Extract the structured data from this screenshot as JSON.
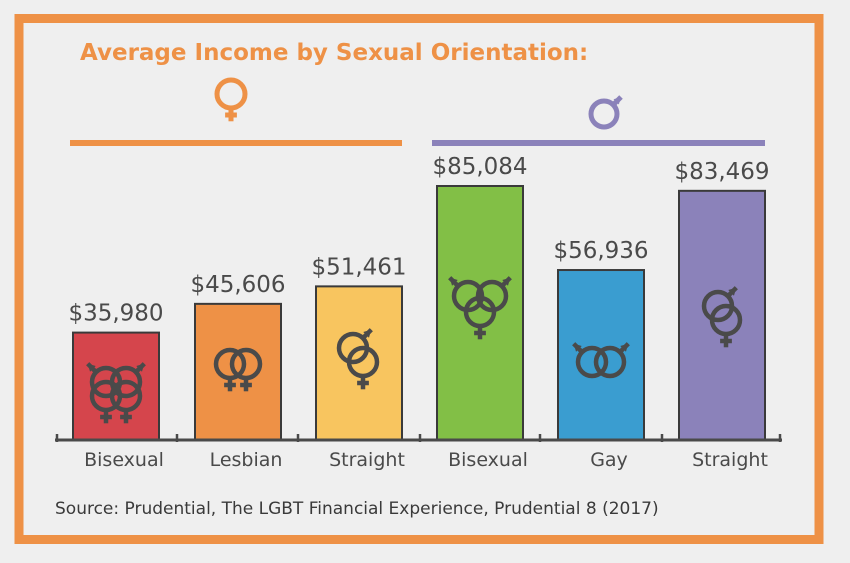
{
  "title": "Average Income by Sexual Orientation:",
  "source": "Source: Prudential, The LGBT Financial Experience, Prudential 8 (2017)",
  "colors": {
    "frame": "#ee9146",
    "title": "#ee9146",
    "female_group": "#ee9146",
    "male_group": "#8b82ba",
    "axis": "#4a4a4a",
    "symbol": "#4a4a4a"
  },
  "groups": [
    {
      "symbol_icon": "female-symbol-icon",
      "color": "#ee9146"
    },
    {
      "symbol_icon": "male-symbol-icon",
      "color": "#8b82ba"
    }
  ],
  "chart_data": {
    "type": "bar",
    "title": "Average Income by Sexual Orientation:",
    "xlabel": "",
    "ylabel": "",
    "ylim": [
      0,
      85084
    ],
    "grid": false,
    "categories": [
      "Bisexual",
      "Lesbian",
      "Straight",
      "Bisexual",
      "Gay",
      "Straight"
    ],
    "values": [
      35980,
      45606,
      51461,
      85084,
      56936,
      83469
    ],
    "value_labels": [
      "$35,980",
      "$45,606",
      "$51,461",
      "$85,084",
      "$56,936",
      "$83,469"
    ],
    "bar_colors": [
      "#d5454c",
      "#ee9146",
      "#f8c55f",
      "#82bf46",
      "#3a9dd0",
      "#8b82ba"
    ],
    "bar_icons": [
      "female-bisexual-symbol-icon",
      "lesbian-symbol-icon",
      "female-straight-symbol-icon",
      "male-bisexual-symbol-icon",
      "gay-symbol-icon",
      "male-straight-symbol-icon"
    ],
    "group_index": [
      0,
      0,
      0,
      1,
      1,
      1
    ]
  }
}
